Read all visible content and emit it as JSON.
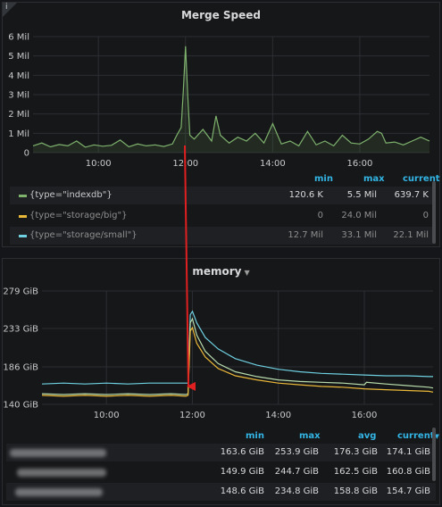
{
  "top_panel": {
    "title": "Merge Speed",
    "info_icon": "info-icon",
    "chart_data": {
      "type": "line",
      "title": "Merge Speed",
      "xlabel": "",
      "ylabel": "",
      "y_ticks": [
        "0",
        "1 Mil",
        "2 Mil",
        "3 Mil",
        "4 Mil",
        "5 Mil",
        "6 Mil"
      ],
      "x_ticks": [
        "10:00",
        "12:00",
        "14:00",
        "16:00"
      ],
      "ylim": [
        0,
        6000000
      ],
      "grid": true,
      "series": [
        {
          "name": "{type=\"indexdb\"}",
          "color": "#7eb26d",
          "x": [
            8.5,
            8.7,
            8.9,
            9.1,
            9.3,
            9.5,
            9.7,
            9.9,
            10.1,
            10.3,
            10.5,
            10.7,
            10.9,
            11.1,
            11.3,
            11.5,
            11.7,
            11.8,
            11.9,
            11.95,
            12.0,
            12.05,
            12.1,
            12.2,
            12.4,
            12.6,
            12.7,
            12.8,
            13.0,
            13.2,
            13.4,
            13.6,
            13.8,
            14.0,
            14.2,
            14.4,
            14.6,
            14.8,
            15.0,
            15.2,
            15.4,
            15.6,
            15.8,
            16.0,
            16.2,
            16.4,
            16.5,
            16.6,
            16.8,
            17.0,
            17.2,
            17.4,
            17.6
          ],
          "y": [
            350000,
            500000,
            300000,
            420000,
            350000,
            600000,
            280000,
            400000,
            330000,
            380000,
            650000,
            300000,
            450000,
            350000,
            400000,
            320000,
            450000,
            900000,
            1300000,
            3200000,
            5500000,
            3000000,
            900000,
            700000,
            1200000,
            600000,
            1900000,
            900000,
            500000,
            800000,
            600000,
            1000000,
            500000,
            1500000,
            450000,
            600000,
            350000,
            1100000,
            400000,
            600000,
            350000,
            900000,
            500000,
            450000,
            700000,
            1100000,
            1000000,
            500000,
            550000,
            400000,
            600000,
            800000,
            600000
          ]
        },
        {
          "name": "{type=\"storage/big\"}",
          "color": "#eab839",
          "x": [],
          "y": []
        },
        {
          "name": "{type=\"storage/small\"}",
          "color": "#6ed0e0",
          "x": [],
          "y": []
        }
      ]
    },
    "legend": {
      "headers": {
        "min": "min",
        "max": "max",
        "current": "current"
      },
      "rows": [
        {
          "name": "{type=\"indexdb\"}",
          "min": "120.6 K",
          "max": "5.5 Mil",
          "current": "639.7 K",
          "color": "#7eb26d",
          "dim": false
        },
        {
          "name": "{type=\"storage/big\"}",
          "min": "0",
          "max": "24.0 Mil",
          "current": "0",
          "color": "#eab839",
          "dim": true
        },
        {
          "name": "{type=\"storage/small\"}",
          "min": "12.7 Mil",
          "max": "33.1 Mil",
          "current": "22.1 Mil",
          "color": "#6ed0e0",
          "dim": true
        }
      ]
    }
  },
  "bottom_panel": {
    "title": "memory",
    "title_caret_icon": "caret-down-icon",
    "chart_data": {
      "type": "line",
      "title": "memory",
      "xlabel": "",
      "ylabel": "",
      "y_ticks": [
        "140 GiB",
        "186 GiB",
        "233 GiB",
        "279 GiB"
      ],
      "x_ticks": [
        "10:00",
        "12:00",
        "14:00",
        "16:00"
      ],
      "ylim": [
        140,
        279
      ],
      "grid": true,
      "series": [
        {
          "color": "#6ed0e0",
          "x": [
            8.5,
            9.0,
            9.5,
            10.0,
            10.5,
            11.0,
            11.5,
            11.85,
            11.9,
            11.95,
            12.0,
            12.1,
            12.3,
            12.6,
            13.0,
            13.5,
            14.0,
            14.5,
            15.0,
            15.5,
            16.0,
            16.5,
            17.0,
            17.5,
            17.6
          ],
          "y": [
            165,
            166,
            165,
            166,
            165,
            166,
            166,
            166,
            166,
            250,
            254,
            240,
            222,
            208,
            196,
            188,
            183,
            180,
            178,
            177,
            176,
            175,
            175,
            174,
            174
          ]
        },
        {
          "color": "#b7dbab",
          "x": [
            8.5,
            9.0,
            9.5,
            10.0,
            10.5,
            11.0,
            11.5,
            11.85,
            11.9,
            11.95,
            12.0,
            12.1,
            12.3,
            12.6,
            13.0,
            13.5,
            14.0,
            14.5,
            15.0,
            15.5,
            16.0,
            16.05,
            16.5,
            17.0,
            17.5,
            17.6
          ],
          "y": [
            153,
            152,
            153,
            152,
            153,
            152,
            153,
            152,
            153,
            240,
            245,
            225,
            205,
            190,
            180,
            174,
            170,
            168,
            167,
            166,
            164,
            167,
            165,
            163,
            161,
            160
          ]
        },
        {
          "color": "#eab839",
          "x": [
            8.5,
            9.0,
            9.5,
            10.0,
            10.5,
            11.0,
            11.5,
            11.85,
            11.9,
            11.95,
            12.0,
            12.1,
            12.3,
            12.6,
            13.0,
            13.5,
            14.0,
            14.5,
            15.0,
            15.5,
            16.0,
            16.5,
            17.0,
            17.5,
            17.6
          ],
          "y": [
            151,
            150,
            151,
            150,
            151,
            150,
            151,
            150,
            151,
            230,
            234,
            215,
            198,
            184,
            175,
            170,
            166,
            164,
            162,
            161,
            159,
            158,
            157,
            156,
            155
          ]
        }
      ]
    },
    "legend": {
      "headers": {
        "min": "min",
        "max": "max",
        "avg": "avg",
        "current": "current"
      },
      "sort_icon": "caret-down-icon",
      "rows": [
        {
          "min": "163.6 GiB",
          "max": "253.9 GiB",
          "avg": "176.3 GiB",
          "current": "174.1 GiB",
          "color": "#6ed0e0"
        },
        {
          "min": "149.9 GiB",
          "max": "244.7 GiB",
          "avg": "162.5 GiB",
          "current": "160.8 GiB",
          "color": "#b7dbab"
        },
        {
          "min": "148.6 GiB",
          "max": "234.8 GiB",
          "avg": "158.8 GiB",
          "current": "154.7 GiB",
          "color": "#eab839"
        }
      ]
    }
  },
  "annotation": {
    "arrow_color": "#e02020",
    "arrow_icon": "arrow-down-icon"
  }
}
